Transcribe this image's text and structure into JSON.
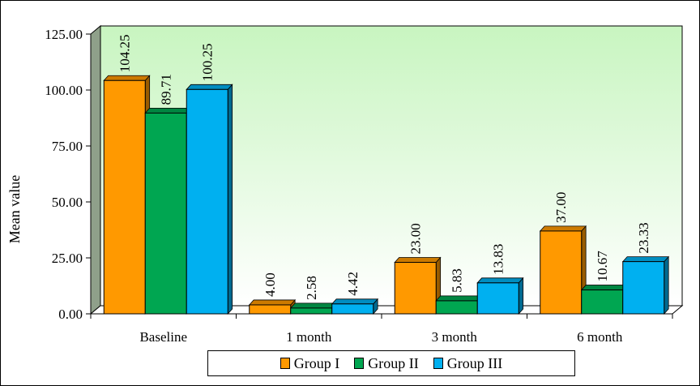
{
  "chart_data": {
    "type": "bar",
    "title": "",
    "xlabel": "",
    "ylabel": "Mean value",
    "ylim": [
      0,
      125
    ],
    "yticks": [
      "0.00",
      "25.00",
      "50.00",
      "75.00",
      "100.00",
      "125.00"
    ],
    "categories": [
      "Baseline",
      "1 month",
      "3 month",
      "6 month"
    ],
    "series": [
      {
        "name": "Group I",
        "color": "#FF9900",
        "values": [
          104.25,
          4.0,
          23.0,
          37.0
        ],
        "labels": [
          "104.25",
          "4.00",
          "23.00",
          "37.00"
        ]
      },
      {
        "name": "Group II",
        "color": "#00A651",
        "values": [
          89.71,
          2.58,
          5.83,
          10.67
        ],
        "labels": [
          "89.71",
          "2.58",
          "5.83",
          "10.67"
        ]
      },
      {
        "name": "Group III",
        "color": "#00B0F0",
        "values": [
          100.25,
          4.42,
          13.83,
          23.33
        ],
        "labels": [
          "100.25",
          "4.42",
          "13.83",
          "23.33"
        ]
      }
    ],
    "legend_position": "bottom",
    "grid": false
  }
}
